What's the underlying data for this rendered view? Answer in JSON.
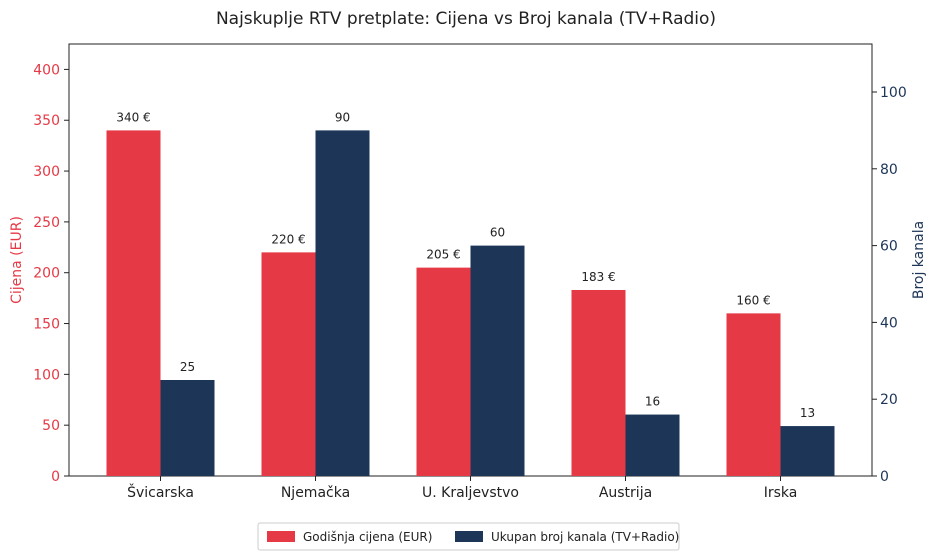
{
  "chart_data": {
    "type": "bar",
    "title": "Najskuplje RTV pretplate: Cijena vs Broj kanala (TV+Radio)",
    "categories": [
      "Švicarska",
      "Njemačka",
      "U. Kraljevstvo",
      "Austrija",
      "Irska"
    ],
    "series": [
      {
        "name": "Godišnja cijena (EUR)",
        "axis": "left",
        "color": "#E63946",
        "values": [
          340,
          220,
          205,
          183,
          160
        ],
        "labels": [
          "340 €",
          "220 €",
          "205 €",
          "183 €",
          "160 €"
        ]
      },
      {
        "name": "Ukupan broj kanala (TV+Radio)",
        "axis": "right",
        "color": "#1D3557",
        "values": [
          25,
          90,
          60,
          16,
          13
        ],
        "labels": [
          "25",
          "90",
          "60",
          "16",
          "13"
        ]
      }
    ],
    "y_left": {
      "label": "Cijena (EUR)",
      "color": "#E63946",
      "min": 0,
      "max": 425,
      "ticks": [
        0,
        50,
        100,
        150,
        200,
        250,
        300,
        350,
        400
      ]
    },
    "y_right": {
      "label": "Broj kanala",
      "color": "#1D3557",
      "min": 0,
      "max": 112.5,
      "ticks": [
        0,
        20,
        40,
        60,
        80,
        100
      ]
    },
    "grid": false,
    "legend_position": "bottom-center"
  }
}
